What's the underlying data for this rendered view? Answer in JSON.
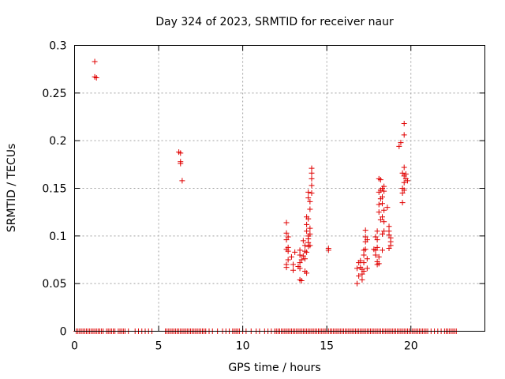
{
  "chart_data": {
    "type": "scatter",
    "title": "Day 324 of 2023, SRMTID for receiver naur",
    "xlabel": "GPS time / hours",
    "ylabel": "SRMTID / TECUs",
    "xlim": [
      0,
      24.4
    ],
    "ylim": [
      0,
      0.3
    ],
    "xticks": [
      0,
      5,
      10,
      15,
      20
    ],
    "xtick_labels": [
      "0",
      "5",
      "10",
      "15",
      "20"
    ],
    "yticks": [
      0,
      0.05,
      0.1,
      0.15,
      0.2,
      0.25,
      0.3
    ],
    "ytick_labels": [
      "0",
      "0.05",
      "0.1",
      "0.15",
      "0.2",
      "0.25",
      "0.3"
    ],
    "grid": true,
    "marker": "+",
    "color": "#e00000",
    "series": [
      {
        "name": "SRMTID",
        "points": [
          [
            1.2,
            0.283
          ],
          [
            1.2,
            0.267
          ],
          [
            1.3,
            0.266
          ],
          [
            6.2,
            0.188
          ],
          [
            6.3,
            0.187
          ],
          [
            6.3,
            0.178
          ],
          [
            6.3,
            0.176
          ],
          [
            6.4,
            0.158
          ],
          [
            12.6,
            0.114
          ],
          [
            12.6,
            0.103
          ],
          [
            12.7,
            0.099
          ],
          [
            12.6,
            0.096
          ],
          [
            12.7,
            0.088
          ],
          [
            12.6,
            0.086
          ],
          [
            12.7,
            0.084
          ],
          [
            12.7,
            0.075
          ],
          [
            12.6,
            0.07
          ],
          [
            12.6,
            0.067
          ],
          [
            12.9,
            0.078
          ],
          [
            13.0,
            0.07
          ],
          [
            13.0,
            0.064
          ],
          [
            13.1,
            0.083
          ],
          [
            13.4,
            0.085
          ],
          [
            13.4,
            0.08
          ],
          [
            13.5,
            0.075
          ],
          [
            13.4,
            0.072
          ],
          [
            13.3,
            0.068
          ],
          [
            13.4,
            0.066
          ],
          [
            13.4,
            0.054
          ],
          [
            13.5,
            0.053
          ],
          [
            13.6,
            0.095
          ],
          [
            13.7,
            0.09
          ],
          [
            13.7,
            0.084
          ],
          [
            13.6,
            0.079
          ],
          [
            13.7,
            0.076
          ],
          [
            13.7,
            0.063
          ],
          [
            13.8,
            0.061
          ],
          [
            13.8,
            0.12
          ],
          [
            13.8,
            0.112
          ],
          [
            13.8,
            0.105
          ],
          [
            13.9,
            0.1
          ],
          [
            13.9,
            0.097
          ],
          [
            13.9,
            0.093
          ],
          [
            13.9,
            0.089
          ],
          [
            13.8,
            0.083
          ],
          [
            13.9,
            0.146
          ],
          [
            13.9,
            0.14
          ],
          [
            14.0,
            0.136
          ],
          [
            14.0,
            0.128
          ],
          [
            13.9,
            0.118
          ],
          [
            14.0,
            0.108
          ],
          [
            14.0,
            0.102
          ],
          [
            14.0,
            0.09
          ],
          [
            14.1,
            0.171
          ],
          [
            14.1,
            0.166
          ],
          [
            14.1,
            0.16
          ],
          [
            14.1,
            0.153
          ],
          [
            14.1,
            0.145
          ],
          [
            15.1,
            0.087
          ],
          [
            15.1,
            0.085
          ],
          [
            16.8,
            0.066
          ],
          [
            16.8,
            0.05
          ],
          [
            16.9,
            0.072
          ],
          [
            16.9,
            0.058
          ],
          [
            17.0,
            0.074
          ],
          [
            17.0,
            0.067
          ],
          [
            17.1,
            0.065
          ],
          [
            17.1,
            0.06
          ],
          [
            17.1,
            0.054
          ],
          [
            17.2,
            0.085
          ],
          [
            17.2,
            0.08
          ],
          [
            17.2,
            0.072
          ],
          [
            17.2,
            0.063
          ],
          [
            17.3,
            0.106
          ],
          [
            17.3,
            0.099
          ],
          [
            17.3,
            0.094
          ],
          [
            17.3,
            0.086
          ],
          [
            17.4,
            0.096
          ],
          [
            17.4,
            0.076
          ],
          [
            17.4,
            0.066
          ],
          [
            17.8,
            0.086
          ],
          [
            17.9,
            0.08
          ],
          [
            17.9,
            0.085
          ],
          [
            17.9,
            0.099
          ],
          [
            18.0,
            0.105
          ],
          [
            18.0,
            0.096
          ],
          [
            18.0,
            0.088
          ],
          [
            18.0,
            0.073
          ],
          [
            18.0,
            0.07
          ],
          [
            18.1,
            0.078
          ],
          [
            18.1,
            0.071
          ],
          [
            18.1,
            0.16
          ],
          [
            18.1,
            0.146
          ],
          [
            18.1,
            0.133
          ],
          [
            18.1,
            0.125
          ],
          [
            18.2,
            0.159
          ],
          [
            18.2,
            0.148
          ],
          [
            18.2,
            0.139
          ],
          [
            18.2,
            0.117
          ],
          [
            18.3,
            0.15
          ],
          [
            18.3,
            0.141
          ],
          [
            18.3,
            0.134
          ],
          [
            18.3,
            0.12
          ],
          [
            18.3,
            0.102
          ],
          [
            18.3,
            0.085
          ],
          [
            18.4,
            0.152
          ],
          [
            18.4,
            0.147
          ],
          [
            18.4,
            0.127
          ],
          [
            18.4,
            0.115
          ],
          [
            18.4,
            0.105
          ],
          [
            18.6,
            0.13
          ],
          [
            18.7,
            0.11
          ],
          [
            18.7,
            0.105
          ],
          [
            18.7,
            0.101
          ],
          [
            18.8,
            0.098
          ],
          [
            18.8,
            0.094
          ],
          [
            18.8,
            0.09
          ],
          [
            18.7,
            0.087
          ],
          [
            19.3,
            0.194
          ],
          [
            19.4,
            0.198
          ],
          [
            19.5,
            0.166
          ],
          [
            19.5,
            0.15
          ],
          [
            19.5,
            0.145
          ],
          [
            19.5,
            0.135
          ],
          [
            19.6,
            0.218
          ],
          [
            19.6,
            0.206
          ],
          [
            19.6,
            0.172
          ],
          [
            19.6,
            0.163
          ],
          [
            19.6,
            0.156
          ],
          [
            19.6,
            0.148
          ],
          [
            19.7,
            0.165
          ],
          [
            19.7,
            0.16
          ],
          [
            19.8,
            0.158
          ]
        ],
        "zero_x": [
          0.1,
          0.2,
          0.3,
          0.4,
          0.5,
          0.6,
          0.7,
          0.8,
          0.9,
          1.0,
          1.1,
          1.2,
          1.3,
          1.4,
          1.5,
          1.6,
          1.7,
          1.9,
          2.0,
          2.1,
          2.2,
          2.3,
          2.4,
          2.6,
          2.7,
          2.8,
          2.9,
          3.0,
          3.2,
          3.6,
          3.8,
          4.0,
          4.2,
          4.4,
          4.6,
          5.4,
          5.5,
          5.6,
          5.7,
          5.8,
          5.9,
          6.0,
          6.1,
          6.2,
          6.3,
          6.4,
          6.5,
          6.6,
          6.7,
          6.8,
          6.9,
          7.0,
          7.1,
          7.2,
          7.3,
          7.4,
          7.5,
          7.6,
          7.7,
          7.8,
          8.0,
          8.2,
          8.5,
          8.8,
          9.0,
          9.2,
          9.4,
          9.5,
          9.6,
          9.7,
          9.8,
          10.0,
          10.2,
          10.5,
          10.8,
          11.0,
          11.3,
          11.5,
          11.7,
          11.9,
          12.0,
          12.1,
          12.2,
          12.3,
          12.4,
          12.5,
          12.6,
          12.7,
          12.8,
          12.9,
          13.0,
          13.1,
          13.2,
          13.3,
          13.4,
          13.5,
          13.6,
          13.7,
          13.8,
          13.9,
          14.0,
          14.1,
          14.2,
          14.3,
          14.4,
          14.5,
          14.6,
          14.7,
          14.8,
          14.9,
          15.0,
          15.1,
          15.2,
          15.3,
          15.4,
          15.5,
          15.6,
          15.7,
          15.8,
          15.9,
          16.0,
          16.1,
          16.2,
          16.3,
          16.4,
          16.5,
          16.6,
          16.7,
          16.8,
          16.9,
          17.0,
          17.1,
          17.2,
          17.3,
          17.4,
          17.5,
          17.6,
          17.7,
          17.8,
          17.9,
          18.0,
          18.1,
          18.2,
          18.3,
          18.4,
          18.5,
          18.6,
          18.7,
          18.8,
          18.9,
          19.0,
          19.1,
          19.2,
          19.3,
          19.4,
          19.5,
          19.6,
          19.7,
          19.8,
          19.9,
          20.0,
          20.1,
          20.2,
          20.3,
          20.4,
          20.5,
          20.6,
          20.7,
          20.8,
          20.9,
          21.0,
          21.2,
          21.4,
          21.6,
          21.8,
          22.0,
          22.1,
          22.2,
          22.3,
          22.4,
          22.5,
          22.6,
          22.7
        ]
      }
    ]
  }
}
